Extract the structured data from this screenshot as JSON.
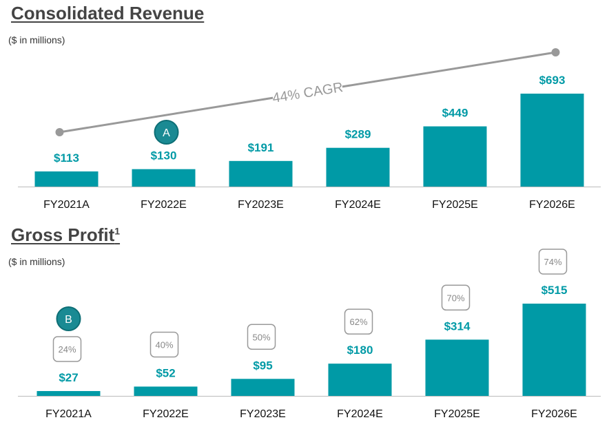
{
  "colors": {
    "bar": "#009aa6",
    "value_text": "#009aa6",
    "cagr_line": "#999999",
    "badge": "#1a8a93",
    "pct_box": "#999999"
  },
  "chart_data": [
    {
      "type": "bar",
      "title": "Consolidated Revenue",
      "subtitle": "($ in millions)",
      "categories": [
        "FY2021A",
        "FY2022E",
        "FY2023E",
        "FY2024E",
        "FY2025E",
        "FY2026E"
      ],
      "values": [
        113,
        130,
        191,
        289,
        449,
        693
      ],
      "value_labels": [
        "$113",
        "$130",
        "$191",
        "$289",
        "$449",
        "$693"
      ],
      "annotation": {
        "text": "44% CAGR",
        "from": "FY2021A",
        "to": "FY2026E"
      },
      "badge": {
        "text": "A",
        "category": "FY2022E"
      },
      "grid": false
    },
    {
      "type": "bar",
      "title": "Gross Profit",
      "title_superscript": "1",
      "subtitle": "($ in millions)",
      "categories": [
        "FY2021A",
        "FY2022E",
        "FY2023E",
        "FY2024E",
        "FY2025E",
        "FY2026E"
      ],
      "values": [
        27,
        52,
        95,
        180,
        314,
        515
      ],
      "value_labels": [
        "$27",
        "$52",
        "$95",
        "$180",
        "$314",
        "$515"
      ],
      "margin_labels": [
        "24%",
        "40%",
        "50%",
        "62%",
        "70%",
        "74%"
      ],
      "badge": {
        "text": "B",
        "category": "FY2021A"
      },
      "grid": false
    }
  ]
}
